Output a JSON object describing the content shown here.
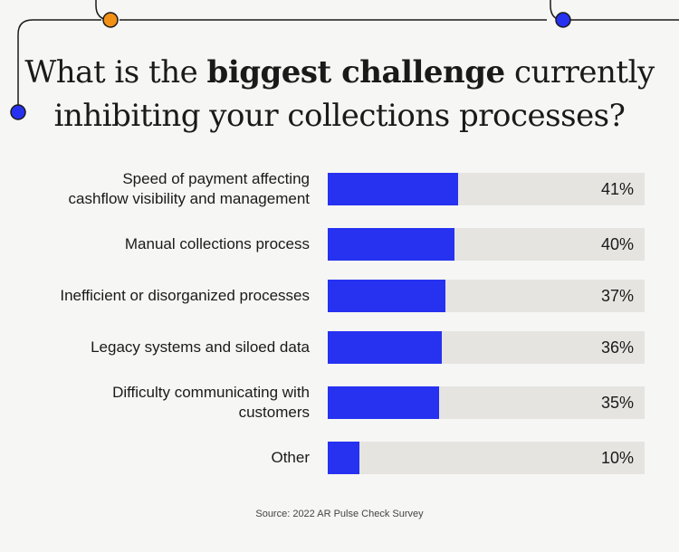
{
  "title": {
    "prefix": "What is the ",
    "bold": "biggest challenge",
    "suffix": " currently",
    "line2": "inhibiting your collections processes?"
  },
  "source": "Source: 2022 AR Pulse Check Survey",
  "colors": {
    "bar": "#2632f0",
    "track": "#e5e4e1",
    "accent_orange": "#f39016",
    "accent_blue": "#2632f0"
  },
  "chart_data": {
    "type": "bar",
    "orientation": "horizontal",
    "categories": [
      "Speed of payment affecting cashflow visibility and management",
      "Manual collections process",
      "Inefficient or disorganized processes",
      "Legacy systems and siloed data",
      "Difficulty communicating with customers",
      "Other"
    ],
    "label_lines": [
      [
        "Speed of payment affecting",
        "cashflow visibility and management"
      ],
      [
        "Manual collections process"
      ],
      [
        "Inefficient or disorganized processes"
      ],
      [
        "Legacy systems and siloed data"
      ],
      [
        "Difficulty communicating with",
        "customers"
      ],
      [
        "Other"
      ]
    ],
    "values": [
      41,
      40,
      37,
      36,
      35,
      10
    ],
    "value_labels": [
      "41%",
      "40%",
      "37%",
      "36%",
      "35%",
      "10%"
    ],
    "xlim": [
      0,
      100
    ],
    "grid": false,
    "legend": "none"
  }
}
